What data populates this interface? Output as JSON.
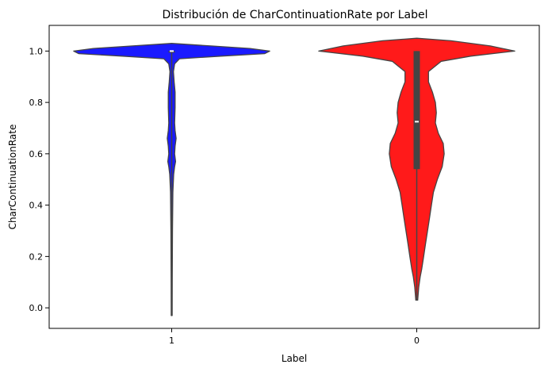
{
  "chart_data": {
    "type": "violin",
    "title": "Distribución de CharContinuationRate por Label",
    "xlabel": "Label",
    "ylabel": "CharContinuationRate",
    "ylim": [
      -0.08,
      1.1
    ],
    "yticks": [
      "0.0",
      "0.2",
      "0.4",
      "0.6",
      "0.8",
      "1.0"
    ],
    "grid": false,
    "categories": [
      "1",
      "0"
    ],
    "series": [
      {
        "category": "1",
        "color": "#1a1aff",
        "range": [
          -0.03,
          1.03
        ],
        "box": {
          "q1": 1.0,
          "median": 1.0,
          "q3": 1.0
        },
        "whiskers": [
          -0.03,
          1.0
        ],
        "density_profile": [
          [
            -0.03,
            0.005
          ],
          [
            0.1,
            0.006
          ],
          [
            0.3,
            0.008
          ],
          [
            0.45,
            0.012
          ],
          [
            0.52,
            0.02
          ],
          [
            0.55,
            0.03
          ],
          [
            0.57,
            0.04
          ],
          [
            0.6,
            0.03
          ],
          [
            0.63,
            0.035
          ],
          [
            0.66,
            0.045
          ],
          [
            0.69,
            0.035
          ],
          [
            0.72,
            0.03
          ],
          [
            0.78,
            0.035
          ],
          [
            0.84,
            0.035
          ],
          [
            0.88,
            0.025
          ],
          [
            0.92,
            0.018
          ],
          [
            0.95,
            0.03
          ],
          [
            0.97,
            0.08
          ],
          [
            0.98,
            0.5
          ],
          [
            0.99,
            0.95
          ],
          [
            1.0,
            1.0
          ],
          [
            1.01,
            0.8
          ],
          [
            1.02,
            0.4
          ],
          [
            1.03,
            0.0
          ]
        ]
      },
      {
        "category": "0",
        "color": "#ff1a1a",
        "range": [
          0.03,
          1.05
        ],
        "box": {
          "q1": 0.54,
          "median": 0.725,
          "q3": 1.0
        },
        "whiskers": [
          0.03,
          1.0
        ],
        "density_profile": [
          [
            0.03,
            0.01
          ],
          [
            0.08,
            0.02
          ],
          [
            0.12,
            0.035
          ],
          [
            0.15,
            0.05
          ],
          [
            0.2,
            0.07
          ],
          [
            0.25,
            0.09
          ],
          [
            0.3,
            0.11
          ],
          [
            0.35,
            0.13
          ],
          [
            0.4,
            0.15
          ],
          [
            0.45,
            0.17
          ],
          [
            0.5,
            0.21
          ],
          [
            0.55,
            0.26
          ],
          [
            0.6,
            0.28
          ],
          [
            0.64,
            0.27
          ],
          [
            0.68,
            0.22
          ],
          [
            0.72,
            0.19
          ],
          [
            0.76,
            0.2
          ],
          [
            0.8,
            0.19
          ],
          [
            0.84,
            0.16
          ],
          [
            0.88,
            0.12
          ],
          [
            0.92,
            0.12
          ],
          [
            0.96,
            0.25
          ],
          [
            0.98,
            0.55
          ],
          [
            1.0,
            1.0
          ],
          [
            1.02,
            0.75
          ],
          [
            1.04,
            0.35
          ],
          [
            1.05,
            0.0
          ]
        ]
      }
    ]
  }
}
